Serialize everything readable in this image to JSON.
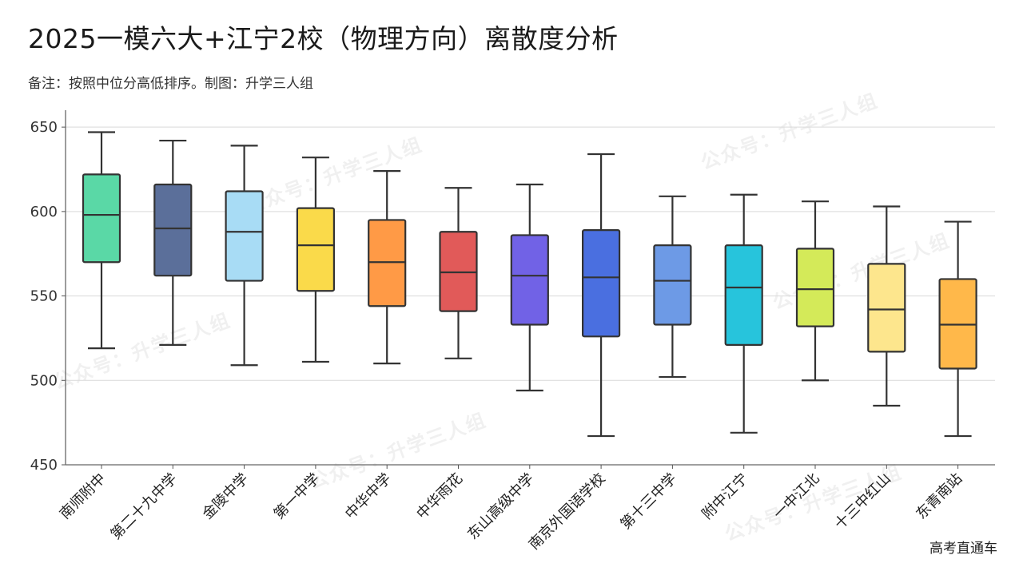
{
  "title": "2025一模六大+江宁2校（物理方向）离散度分析",
  "subtitle": "备注：按照中位分高低排序。制图：升学三人组",
  "watermark": "公众号：升学三人组",
  "footer": "高考直通车",
  "chart_data": {
    "type": "boxplot",
    "title": "2025一模六大+江宁2校（物理方向）离散度分析",
    "xlabel": "",
    "ylabel": "",
    "ylim": [
      450,
      660
    ],
    "yticks": [
      450,
      500,
      550,
      600,
      650
    ],
    "grid": "horizontal",
    "categories": [
      "南师附中",
      "第二十九中学",
      "金陵中学",
      "第一中学",
      "中华中学",
      "中华雨花",
      "东山高级中学",
      "南京外国语学校",
      "第十三中学",
      "附中江宁",
      "一中江北",
      "十三中红山",
      "东青南站"
    ],
    "series": [
      {
        "name": "南师附中",
        "min": 519,
        "q1": 570,
        "median": 598,
        "q3": 622,
        "max": 647,
        "color": "#5ad8a6"
      },
      {
        "name": "第二十九中学",
        "min": 521,
        "q1": 562,
        "median": 590,
        "q3": 616,
        "max": 642,
        "color": "#5b6f9a"
      },
      {
        "name": "金陵中学",
        "min": 509,
        "q1": 559,
        "median": 588,
        "q3": 612,
        "max": 639,
        "color": "#a8dcf5"
      },
      {
        "name": "第一中学",
        "min": 511,
        "q1": 553,
        "median": 580,
        "q3": 602,
        "max": 632,
        "color": "#fada4a"
      },
      {
        "name": "中华中学",
        "min": 510,
        "q1": 544,
        "median": 570,
        "q3": 595,
        "max": 624,
        "color": "#ff9a46"
      },
      {
        "name": "中华雨花",
        "min": 513,
        "q1": 541,
        "median": 564,
        "q3": 588,
        "max": 614,
        "color": "#e15a59"
      },
      {
        "name": "东山高级中学",
        "min": 494,
        "q1": 533,
        "median": 562,
        "q3": 586,
        "max": 616,
        "color": "#7162e6"
      },
      {
        "name": "南京外国语学校",
        "min": 467,
        "q1": 526,
        "median": 561,
        "q3": 589,
        "max": 634,
        "color": "#4a6fe0"
      },
      {
        "name": "第十三中学",
        "min": 502,
        "q1": 533,
        "median": 559,
        "q3": 580,
        "max": 609,
        "color": "#6d9ae6"
      },
      {
        "name": "附中江宁",
        "min": 469,
        "q1": 521,
        "median": 555,
        "q3": 580,
        "max": 610,
        "color": "#27c4dc"
      },
      {
        "name": "一中江北",
        "min": 500,
        "q1": 532,
        "median": 554,
        "q3": 578,
        "max": 606,
        "color": "#d4ea59"
      },
      {
        "name": "十三中红山",
        "min": 485,
        "q1": 517,
        "median": 542,
        "q3": 569,
        "max": 603,
        "color": "#fde68d"
      },
      {
        "name": "东青南站",
        "min": 467,
        "q1": 507,
        "median": 533,
        "q3": 560,
        "max": 594,
        "color": "#ffb84a"
      }
    ]
  }
}
